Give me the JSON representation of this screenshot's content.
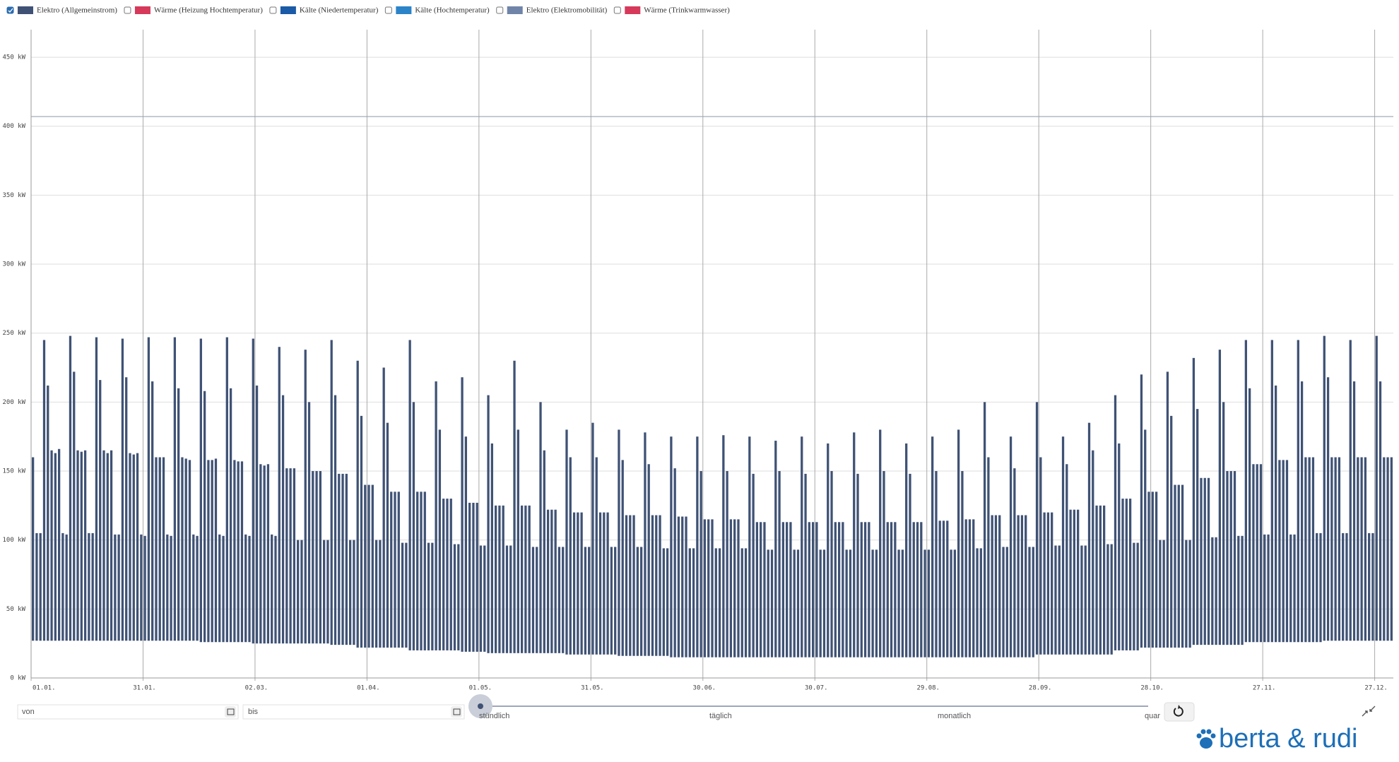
{
  "chart_data": {
    "type": "range-bar",
    "series": [
      {
        "name": "Elektro (Allgemeinstrom)",
        "color": "#3f5275",
        "checked": true,
        "values": [
          160,
          105,
          105,
          245,
          212,
          165,
          163,
          166,
          105,
          104,
          248,
          222,
          165,
          164,
          165,
          105,
          105,
          247,
          216,
          165,
          163,
          165,
          104,
          104,
          246,
          218,
          163,
          162,
          163,
          104,
          103,
          247,
          215,
          160,
          160,
          160,
          104,
          103,
          247,
          210,
          160,
          159,
          158,
          104,
          103,
          246,
          208,
          158,
          158,
          159,
          104,
          103,
          247,
          210,
          158,
          157,
          157,
          104,
          103,
          246,
          212,
          155,
          154,
          155,
          104,
          103,
          240,
          205,
          152,
          152,
          152,
          100,
          100,
          238,
          200,
          150,
          150,
          150,
          100,
          100,
          245,
          205,
          148,
          148,
          148,
          100,
          100,
          230,
          190,
          140,
          140,
          140,
          100,
          100,
          225,
          185,
          135,
          135,
          135,
          98,
          98,
          245,
          200,
          135,
          135,
          135,
          98,
          98,
          215,
          180,
          130,
          130,
          130,
          97,
          97,
          218,
          175,
          127,
          127,
          127,
          96,
          96,
          205,
          170,
          125,
          125,
          125,
          96,
          96,
          230,
          180,
          125,
          125,
          125,
          95,
          95,
          200,
          165,
          122,
          122,
          122,
          95,
          95,
          180,
          160,
          120,
          120,
          120,
          95,
          95,
          185,
          160,
          120,
          120,
          120,
          95,
          95,
          180,
          158,
          118,
          118,
          118,
          95,
          95,
          178,
          155,
          118,
          118,
          118,
          94,
          94,
          175,
          152,
          117,
          117,
          117,
          94,
          94,
          175,
          150,
          115,
          115,
          115,
          94,
          94,
          176,
          150,
          115,
          115,
          115,
          94,
          94,
          175,
          148,
          113,
          113,
          113,
          93,
          93,
          172,
          150,
          113,
          113,
          113,
          93,
          93,
          175,
          148,
          113,
          113,
          113,
          93,
          93,
          170,
          150,
          113,
          113,
          113,
          93,
          93,
          178,
          148,
          113,
          113,
          113,
          93,
          93,
          180,
          150,
          113,
          113,
          113,
          93,
          93,
          170,
          148,
          113,
          113,
          113,
          93,
          93,
          175,
          150,
          114,
          114,
          114,
          93,
          93,
          180,
          150,
          115,
          115,
          115,
          94,
          94,
          200,
          160,
          118,
          118,
          118,
          95,
          95,
          175,
          152,
          118,
          118,
          118,
          95,
          95,
          200,
          160,
          120,
          120,
          120,
          96,
          96,
          175,
          155,
          122,
          122,
          122,
          96,
          96,
          185,
          165,
          125,
          125,
          125,
          97,
          97,
          205,
          170,
          130,
          130,
          130,
          98,
          98,
          220,
          180,
          135,
          135,
          135,
          100,
          100,
          222,
          190,
          140,
          140,
          140,
          100,
          100,
          232,
          195,
          145,
          145,
          145,
          102,
          102,
          238,
          200,
          150,
          150,
          150,
          103,
          103,
          245,
          210,
          155,
          155,
          155,
          104,
          104,
          245,
          212,
          158,
          158,
          158,
          104,
          104,
          245,
          215,
          160,
          160,
          160,
          105,
          105,
          248,
          218,
          160,
          160,
          160,
          105,
          105,
          245,
          215,
          160,
          160,
          160,
          105,
          105,
          248,
          215,
          160,
          160,
          160
        ],
        "min": [
          27,
          27,
          27,
          27,
          27,
          27,
          27,
          27,
          27,
          27,
          27,
          27,
          27,
          27,
          27,
          27,
          27,
          27,
          27,
          27,
          27,
          27,
          27,
          27,
          27,
          27,
          27,
          27,
          27,
          27,
          27,
          27,
          27,
          27,
          27,
          27,
          27,
          27,
          27,
          27,
          27,
          27,
          27,
          27,
          27,
          26,
          26,
          26,
          26,
          26,
          26,
          26,
          26,
          26,
          26,
          26,
          26,
          26,
          26,
          25,
          25,
          25,
          25,
          25,
          25,
          25,
          25,
          25,
          25,
          25,
          25,
          25,
          25,
          25,
          25,
          25,
          25,
          25,
          25,
          25,
          24,
          24,
          24,
          24,
          24,
          24,
          24,
          22,
          22,
          22,
          22,
          22,
          22,
          22,
          22,
          22,
          22,
          22,
          22,
          22,
          22,
          20,
          20,
          20,
          20,
          20,
          20,
          20,
          20,
          20,
          20,
          20,
          20,
          20,
          20,
          19,
          19,
          19,
          19,
          19,
          19,
          19,
          18,
          18,
          18,
          18,
          18,
          18,
          18,
          18,
          18,
          18,
          18,
          18,
          18,
          18,
          18,
          18,
          18,
          18,
          18,
          18,
          18,
          17,
          17,
          17,
          17,
          17,
          17,
          17,
          17,
          17,
          17,
          17,
          17,
          17,
          17,
          16,
          16,
          16,
          16,
          16,
          16,
          16,
          16,
          16,
          16,
          16,
          16,
          16,
          16,
          15,
          15,
          15,
          15,
          15,
          15,
          15,
          15,
          15,
          15,
          15,
          15,
          15,
          15,
          15,
          15,
          15,
          15,
          15,
          15,
          15,
          15,
          15,
          15,
          15,
          15,
          15,
          15,
          15,
          15,
          15,
          15,
          15,
          15,
          15,
          15,
          15,
          15,
          15,
          15,
          15,
          15,
          15,
          15,
          15,
          15,
          15,
          15,
          15,
          15,
          15,
          15,
          15,
          15,
          15,
          15,
          15,
          15,
          15,
          15,
          15,
          15,
          15,
          15,
          15,
          15,
          15,
          15,
          15,
          15,
          15,
          15,
          15,
          15,
          15,
          15,
          15,
          15,
          15,
          15,
          15,
          15,
          15,
          15,
          15,
          15,
          15,
          15,
          15,
          15,
          15,
          15,
          15,
          15,
          15,
          15,
          15,
          15,
          17,
          17,
          17,
          17,
          17,
          17,
          17,
          17,
          17,
          17,
          17,
          17,
          17,
          17,
          17,
          17,
          17,
          17,
          17,
          17,
          17,
          20,
          20,
          20,
          20,
          20,
          20,
          20,
          22,
          22,
          22,
          22,
          22,
          22,
          22,
          22,
          22,
          22,
          22,
          22,
          22,
          22,
          24,
          24,
          24,
          24,
          24,
          24,
          24,
          24,
          24,
          24,
          24,
          24,
          24,
          24,
          26,
          26,
          26,
          26,
          26,
          26,
          26,
          26,
          26,
          26,
          26,
          26,
          26,
          26,
          26,
          26,
          26,
          26,
          26,
          26,
          26,
          27,
          27,
          27,
          27,
          27,
          27,
          27,
          27,
          27,
          27,
          27,
          27,
          27,
          27,
          27,
          27,
          27,
          27,
          27
        ]
      },
      {
        "name": "Wärme (Heizung Hochtemperatur)",
        "color": "#d6395a",
        "checked": false
      },
      {
        "name": "Kälte (Niedertemperatur)",
        "color": "#1a5aa6",
        "checked": false
      },
      {
        "name": "Kälte (Hochtemperatur)",
        "color": "#2b84c8",
        "checked": false
      },
      {
        "name": "Elektro (Elektromobilität)",
        "color": "#6f84a8",
        "checked": false
      },
      {
        "name": "Wärme (Trinkwarmwasser)",
        "color": "#d6395a",
        "checked": false
      }
    ],
    "x": [
      0,
      1,
      2,
      3,
      4,
      5,
      6,
      7,
      8,
      9,
      10,
      11,
      12,
      13,
      14,
      15,
      16,
      17,
      18,
      19,
      20,
      21,
      22,
      23,
      24,
      25,
      26,
      27,
      28,
      29,
      30,
      31,
      32,
      33,
      34,
      35,
      36,
      37,
      38,
      39,
      40,
      41,
      42,
      43,
      44,
      45,
      46,
      47,
      48,
      49,
      50,
      51,
      52,
      53,
      54,
      55,
      56,
      57,
      58,
      59,
      60,
      61,
      62,
      63,
      64,
      65,
      66,
      67,
      68,
      69,
      70,
      71,
      72,
      73,
      74,
      75,
      76,
      77,
      78,
      79,
      80,
      81,
      82,
      83,
      84,
      85,
      86,
      87,
      88,
      89,
      90,
      91,
      92,
      93,
      94,
      95,
      96,
      97,
      98,
      99,
      100,
      101,
      102,
      103,
      104,
      105,
      106,
      107,
      108,
      109,
      110,
      111,
      112,
      113,
      114,
      115,
      116,
      117,
      118,
      119,
      120,
      121,
      122,
      123,
      124,
      125,
      126,
      127,
      128,
      129,
      130,
      131,
      132,
      133,
      134,
      135,
      136,
      137,
      138,
      139,
      140,
      141,
      142,
      143,
      144,
      145,
      146,
      147,
      148,
      149,
      150,
      151,
      152,
      153,
      154,
      155,
      156,
      157,
      158,
      159,
      160,
      161,
      162,
      163,
      164,
      165,
      166,
      167,
      168,
      169,
      170,
      171,
      172,
      173,
      174,
      175,
      176,
      177,
      178,
      179,
      180,
      181,
      182,
      183,
      184,
      185,
      186,
      187,
      188,
      189,
      190,
      191,
      192,
      193,
      194,
      195,
      196,
      197,
      198,
      199,
      200,
      201,
      202,
      203,
      204,
      205,
      206,
      207,
      208,
      209,
      210,
      211,
      212,
      213,
      214,
      215,
      216,
      217,
      218,
      219,
      220,
      221,
      222,
      223,
      224,
      225,
      226,
      227,
      228,
      229,
      230,
      231,
      232,
      233,
      234,
      235,
      236,
      237,
      238,
      239,
      240,
      241,
      242,
      243,
      244,
      245,
      246,
      247,
      248,
      249,
      250,
      251,
      252,
      253,
      254,
      255,
      256,
      257,
      258,
      259,
      260,
      261,
      262,
      263,
      264,
      265,
      266,
      267,
      268,
      269,
      270,
      271,
      272,
      273,
      274,
      275,
      276,
      277,
      278,
      279,
      280,
      281,
      282,
      283,
      284,
      285,
      286,
      287,
      288,
      289,
      290,
      291,
      292,
      293,
      294,
      295,
      296,
      297,
      298,
      299,
      300,
      301,
      302,
      303,
      304,
      305,
      306,
      307,
      308,
      309,
      310,
      311,
      312,
      313,
      314,
      315,
      316,
      317,
      318,
      319,
      320,
      321,
      322,
      323,
      324,
      325,
      326,
      327,
      328,
      329,
      330,
      331,
      332,
      333,
      334,
      335,
      336,
      337,
      338,
      339,
      340,
      341,
      342,
      343,
      344,
      345,
      346,
      347,
      348,
      349,
      350,
      351,
      352,
      353,
      354,
      355,
      356,
      357,
      358,
      359,
      360,
      361,
      362,
      363,
      364
    ],
    "xlim": [
      0,
      365
    ],
    "xticks": [
      {
        "value": 0,
        "label": "01.01."
      },
      {
        "value": 30,
        "label": "31.01."
      },
      {
        "value": 60,
        "label": "02.03."
      },
      {
        "value": 90,
        "label": "01.04."
      },
      {
        "value": 120,
        "label": "01.05."
      },
      {
        "value": 150,
        "label": "31.05."
      },
      {
        "value": 180,
        "label": "30.06."
      },
      {
        "value": 210,
        "label": "30.07."
      },
      {
        "value": 240,
        "label": "29.08."
      },
      {
        "value": 270,
        "label": "28.09."
      },
      {
        "value": 300,
        "label": "28.10."
      },
      {
        "value": 330,
        "label": "27.11."
      },
      {
        "value": 360,
        "label": "27.12."
      }
    ],
    "ylim": [
      0,
      470
    ],
    "yticks": [
      {
        "value": 0,
        "label": "0 kW"
      },
      {
        "value": 50,
        "label": "50 kW"
      },
      {
        "value": 100,
        "label": "100 kW"
      },
      {
        "value": 150,
        "label": "150 kW"
      },
      {
        "value": 200,
        "label": "200 kW"
      },
      {
        "value": 250,
        "label": "250 kW"
      },
      {
        "value": 300,
        "label": "300 kW"
      },
      {
        "value": 350,
        "label": "350 kW"
      },
      {
        "value": 400,
        "label": "400 kW"
      },
      {
        "value": 450,
        "label": "450 kW"
      }
    ],
    "hline": 407,
    "grid": true
  },
  "controls": {
    "from_placeholder": "von",
    "to_placeholder": "bis",
    "resolutions": [
      "stündlich",
      "täglich",
      "monatlich",
      "quar"
    ]
  },
  "brand": {
    "logo": "berta & rudi"
  }
}
